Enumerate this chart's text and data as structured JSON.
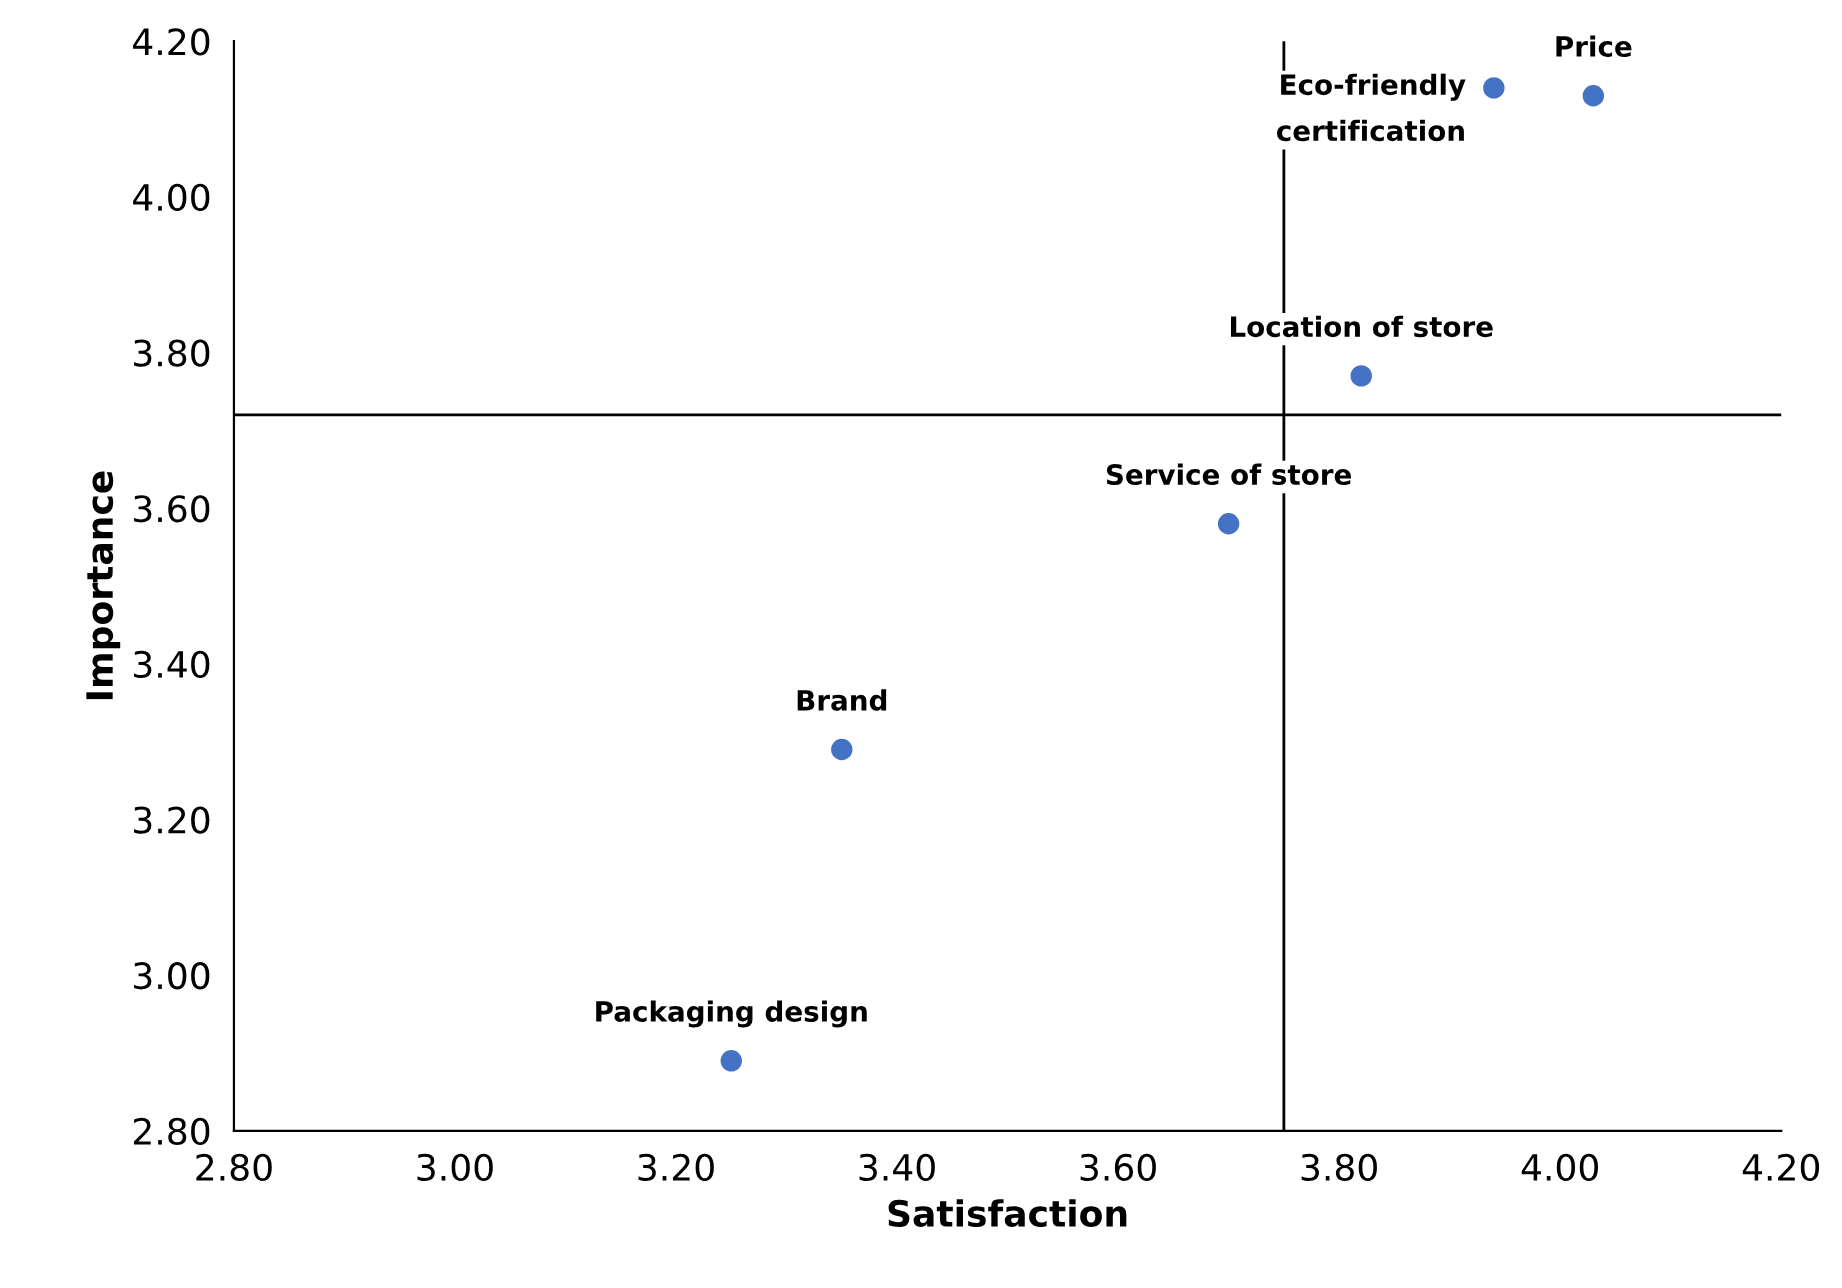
{
  "chart_data": {
    "type": "scatter",
    "xlabel": "Satisfaction",
    "ylabel": "Importance",
    "series": [
      {
        "color": "#4472c4",
        "x": [
          4.03,
          3.94,
          3.82,
          3.7,
          3.35,
          3.25
        ],
        "values": [
          4.13,
          4.14,
          3.77,
          3.58,
          3.29,
          2.89
        ]
      }
    ],
    "annotations": [
      {
        "text": "Price",
        "x": 4.03,
        "y": 4.13
      },
      {
        "text": "Eco-friendly\ncertification",
        "x": 3.94,
        "y": 4.14
      },
      {
        "text": "Location of store",
        "x": 3.82,
        "y": 3.77
      },
      {
        "text": "Service of store",
        "x": 3.7,
        "y": 3.58
      },
      {
        "text": "Brand",
        "x": 3.35,
        "y": 3.29
      },
      {
        "text": "Packaging design",
        "x": 3.25,
        "y": 2.89
      }
    ],
    "ref_lines": [
      {
        "axis": "x",
        "value": 3.75,
        "color": "#000000"
      },
      {
        "axis": "y",
        "value": 3.72,
        "color": "#000000"
      }
    ],
    "xlim": [
      2.8,
      4.2
    ],
    "ylim": [
      2.8,
      4.2
    ],
    "xticks": [
      {
        "value": 2.8,
        "label": "2.80"
      },
      {
        "value": 3.0,
        "label": "3.00"
      },
      {
        "value": 3.2,
        "label": "3.20"
      },
      {
        "value": 3.4,
        "label": "3.40"
      },
      {
        "value": 3.6,
        "label": "3.60"
      },
      {
        "value": 3.8,
        "label": "3.80"
      },
      {
        "value": 4.0,
        "label": "4.00"
      },
      {
        "value": 4.2,
        "label": "4.20"
      }
    ],
    "yticks": [
      {
        "value": 2.8,
        "label": "2.80"
      },
      {
        "value": 3.0,
        "label": "3.00"
      },
      {
        "value": 3.2,
        "label": "3.20"
      },
      {
        "value": 3.4,
        "label": "3.40"
      },
      {
        "value": 3.6,
        "label": "3.60"
      },
      {
        "value": 3.8,
        "label": "3.80"
      },
      {
        "value": 4.0,
        "label": "4.00"
      },
      {
        "value": 4.2,
        "label": "4.20"
      }
    ],
    "grid": false,
    "legend": false,
    "marker": "circle"
  }
}
